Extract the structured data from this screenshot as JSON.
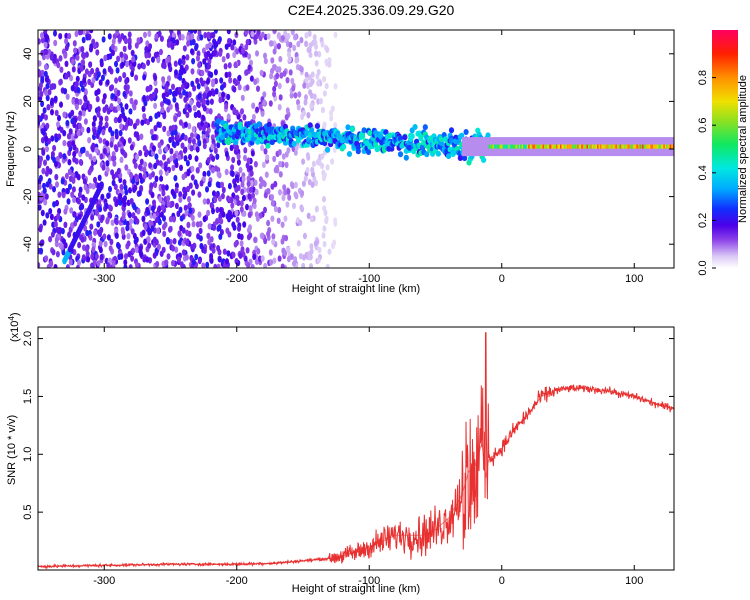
{
  "title": "C2E4.2025.336.09.29.G20",
  "colors": {
    "background": "#ffffff",
    "axis": "#000000",
    "snr_line": "#e83030",
    "colormap": [
      "#ffffff",
      "#d9c7f5",
      "#8a3ee8",
      "#4a00e8",
      "#1030ff",
      "#00a8ff",
      "#00e8e0",
      "#10e860",
      "#90e020",
      "#f0e000",
      "#ff9000",
      "#ff2000",
      "#ff0060"
    ]
  },
  "chart_data": [
    {
      "type": "heatmap",
      "name": "spectrogram",
      "xlabel": "Height of straight line (km)",
      "ylabel": "Frequency (Hz)",
      "xlim": [
        -350,
        130
      ],
      "ylim": [
        -50,
        50
      ],
      "xticks": [
        -300,
        -200,
        -100,
        0,
        100
      ],
      "yticks": [
        -40,
        -20,
        0,
        20,
        40
      ],
      "xtick_labels": [
        "-300",
        "-200",
        "-100",
        "0",
        "100"
      ],
      "ytick_labels": [
        "-40",
        "-20",
        "0",
        "20",
        "40"
      ],
      "colorbar": {
        "label": "Normalized spectral amplitude",
        "range": [
          0,
          1
        ],
        "ticks": [
          0.0,
          0.2,
          0.4,
          0.6,
          0.8
        ],
        "tick_labels": [
          "0.0",
          "0.2",
          "0.4",
          "0.6",
          "0.8"
        ]
      },
      "features": {
        "noise_region_x": [
          -350,
          -135
        ],
        "signal_ridge_x": [
          -215,
          130
        ],
        "signal_ridge_freq_start": 7,
        "signal_ridge_freq_end": 1,
        "strong_tone_x": [
          -10,
          130
        ],
        "strong_tone_freq": 1
      }
    },
    {
      "type": "line",
      "name": "snr",
      "xlabel": "Height of straight line (km)",
      "ylabel": "SNR (10 * v/v)",
      "y_multiplier": "(x10",
      "y_multiplier_exp": "4",
      "y_multiplier_close": ")",
      "xlim": [
        -350,
        130
      ],
      "ylim": [
        0,
        2.1
      ],
      "xticks": [
        -300,
        -200,
        -100,
        0,
        100
      ],
      "yticks": [
        0.5,
        1.0,
        1.5,
        2.0
      ],
      "xtick_labels": [
        "-300",
        "-200",
        "-100",
        "0",
        "100"
      ],
      "ytick_labels": [
        "0.5",
        "1.0",
        "1.5",
        "2.0"
      ],
      "series": [
        {
          "name": "SNR",
          "x": [
            -350,
            -300,
            -250,
            -200,
            -170,
            -150,
            -130,
            -110,
            -100,
            -90,
            -80,
            -70,
            -60,
            -50,
            -40,
            -30,
            -25,
            -20,
            -15,
            -12,
            -10,
            0,
            10,
            20,
            30,
            40,
            50,
            60,
            70,
            80,
            90,
            100,
            110,
            120,
            130
          ],
          "values": [
            0.03,
            0.04,
            0.05,
            0.05,
            0.06,
            0.08,
            0.1,
            0.15,
            0.2,
            0.25,
            0.3,
            0.3,
            0.3,
            0.35,
            0.45,
            0.65,
            0.85,
            0.9,
            1.1,
            0.8,
            0.95,
            1.05,
            1.22,
            1.35,
            1.5,
            1.55,
            1.57,
            1.57,
            1.56,
            1.55,
            1.52,
            1.5,
            1.46,
            1.42,
            1.4
          ],
          "spike": {
            "x": -12,
            "y": 2.05
          }
        }
      ]
    }
  ]
}
